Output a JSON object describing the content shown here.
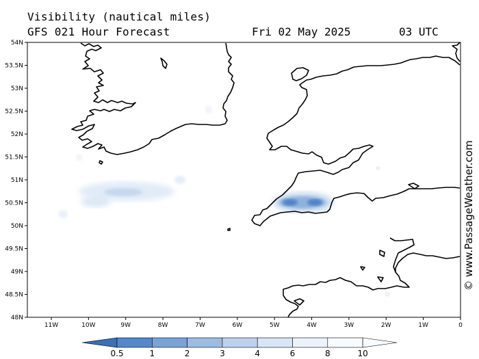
{
  "header": {
    "title": "Visibility (nautical miles)",
    "subtitle": "GFS 021 Hour Forecast",
    "date": "Fri 02 May 2025",
    "time": "03 UTC"
  },
  "credit": "© www.PassageWeather.com",
  "map": {
    "lat_labels": [
      "54N",
      "53.5N",
      "53N",
      "52.5N",
      "52N",
      "51.5N",
      "51N",
      "50.5N",
      "50N",
      "49.5N",
      "49N",
      "48.5N",
      "48N"
    ],
    "lon_labels": [
      "11W",
      "10W",
      "9W",
      "8W",
      "7W",
      "6W",
      "5W",
      "4W",
      "3W",
      "2W",
      "1W",
      "0"
    ]
  },
  "colorbar": {
    "labels": [
      "0.5",
      "1",
      "2",
      "3",
      "4",
      "6",
      "8",
      "10"
    ],
    "colors": [
      "#3f79c0",
      "#5588c8",
      "#7aa3d6",
      "#9dbce2",
      "#bcd2ec",
      "#d8e5f4",
      "#ecf2fa",
      "#f8fbfe"
    ]
  }
}
